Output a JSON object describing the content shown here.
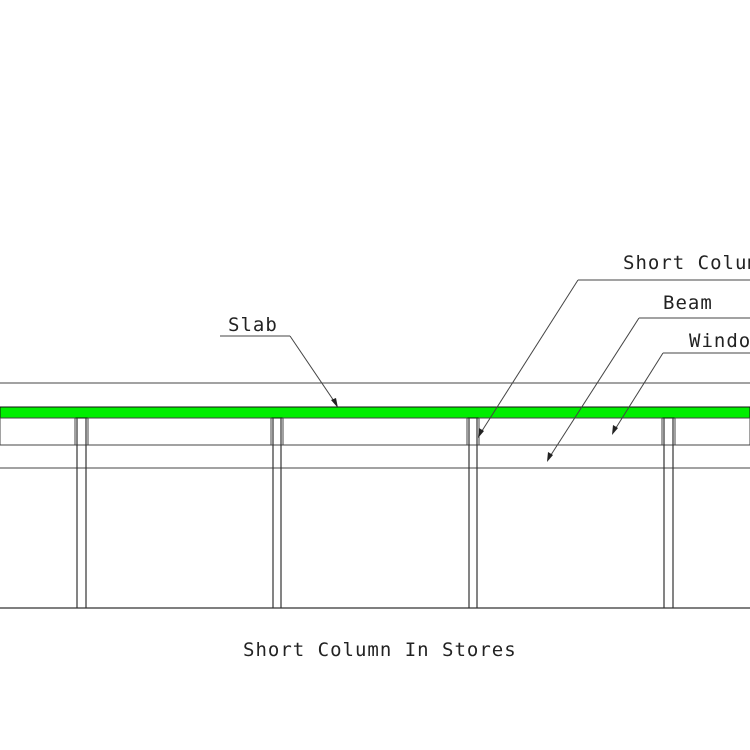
{
  "diagram": {
    "caption": "Short Column In Stores",
    "labels": {
      "slab": "Slab",
      "short_column": "Short Colum",
      "beam": "Beam",
      "window": "Windo"
    },
    "colors": {
      "slab": "#00ee00",
      "lines": "#333333",
      "background": "#ffffff"
    }
  }
}
